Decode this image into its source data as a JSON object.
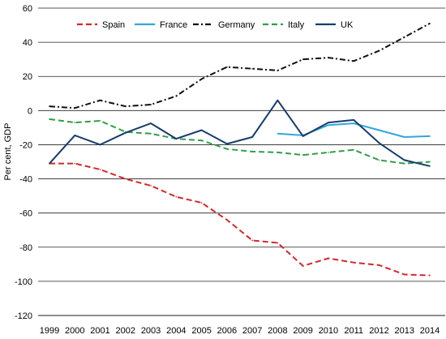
{
  "chart_data": {
    "type": "line",
    "ylabel": "Per cent, GDP",
    "ylim": [
      -120,
      60
    ],
    "yticks": [
      -120,
      -100,
      -80,
      -60,
      -40,
      -20,
      0,
      20,
      40,
      60
    ],
    "categories": [
      "1999",
      "2000",
      "2001",
      "2002",
      "2003",
      "2004",
      "2005",
      "2006",
      "2007",
      "2008",
      "2009",
      "2010",
      "2011",
      "2012",
      "2013",
      "2014"
    ],
    "grid": "horizontal",
    "legend": "top",
    "series": [
      {
        "name": "Spain",
        "color": "#d7262d",
        "dash": "dashed",
        "values": [
          -31,
          -31,
          -34.5,
          -40,
          -44,
          -50.5,
          -54,
          -64,
          -76,
          -77.5,
          -91,
          -86.5,
          -89,
          -90.5,
          -96,
          -96.5
        ]
      },
      {
        "name": "France",
        "color": "#33a6dc",
        "dash": "solid",
        "values": [
          null,
          null,
          null,
          null,
          null,
          null,
          null,
          null,
          null,
          -13.5,
          -14.5,
          -8.5,
          -7.5,
          -11.5,
          -15.5,
          -15
        ]
      },
      {
        "name": "Germany",
        "color": "#111111",
        "dash": "dashdot",
        "values": [
          2.5,
          1.5,
          6,
          2.5,
          3.5,
          8.5,
          18.5,
          25.5,
          24.5,
          23.5,
          30,
          31,
          29,
          35,
          43,
          51
        ]
      },
      {
        "name": "Italy",
        "color": "#2f9e48",
        "dash": "dashed",
        "values": [
          -5,
          -7,
          -6,
          -12.5,
          -13.5,
          -16.5,
          -17.5,
          -22.5,
          -24,
          -24.5,
          -26,
          -24.5,
          -23,
          -29,
          -31,
          -30
        ]
      },
      {
        "name": "UK",
        "color": "#173d6c",
        "dash": "solid",
        "values": [
          -31,
          -14.5,
          -20,
          -13,
          -7.5,
          -16.5,
          -11.5,
          -19.5,
          -15.5,
          6,
          -15,
          -7,
          -5.5,
          -19,
          -29,
          -32.5
        ]
      }
    ]
  }
}
